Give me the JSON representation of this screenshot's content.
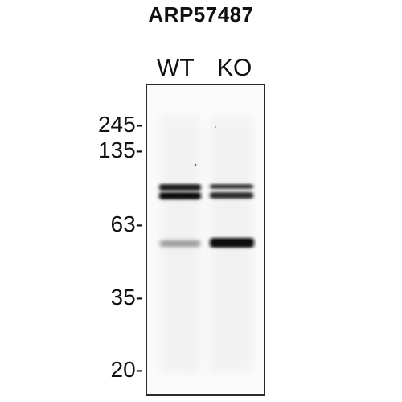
{
  "title": "ARP57487",
  "lanes": [
    "WT",
    "KO"
  ],
  "markers": [
    "245-",
    "135-",
    "63-",
    "35-",
    "20-"
  ]
}
